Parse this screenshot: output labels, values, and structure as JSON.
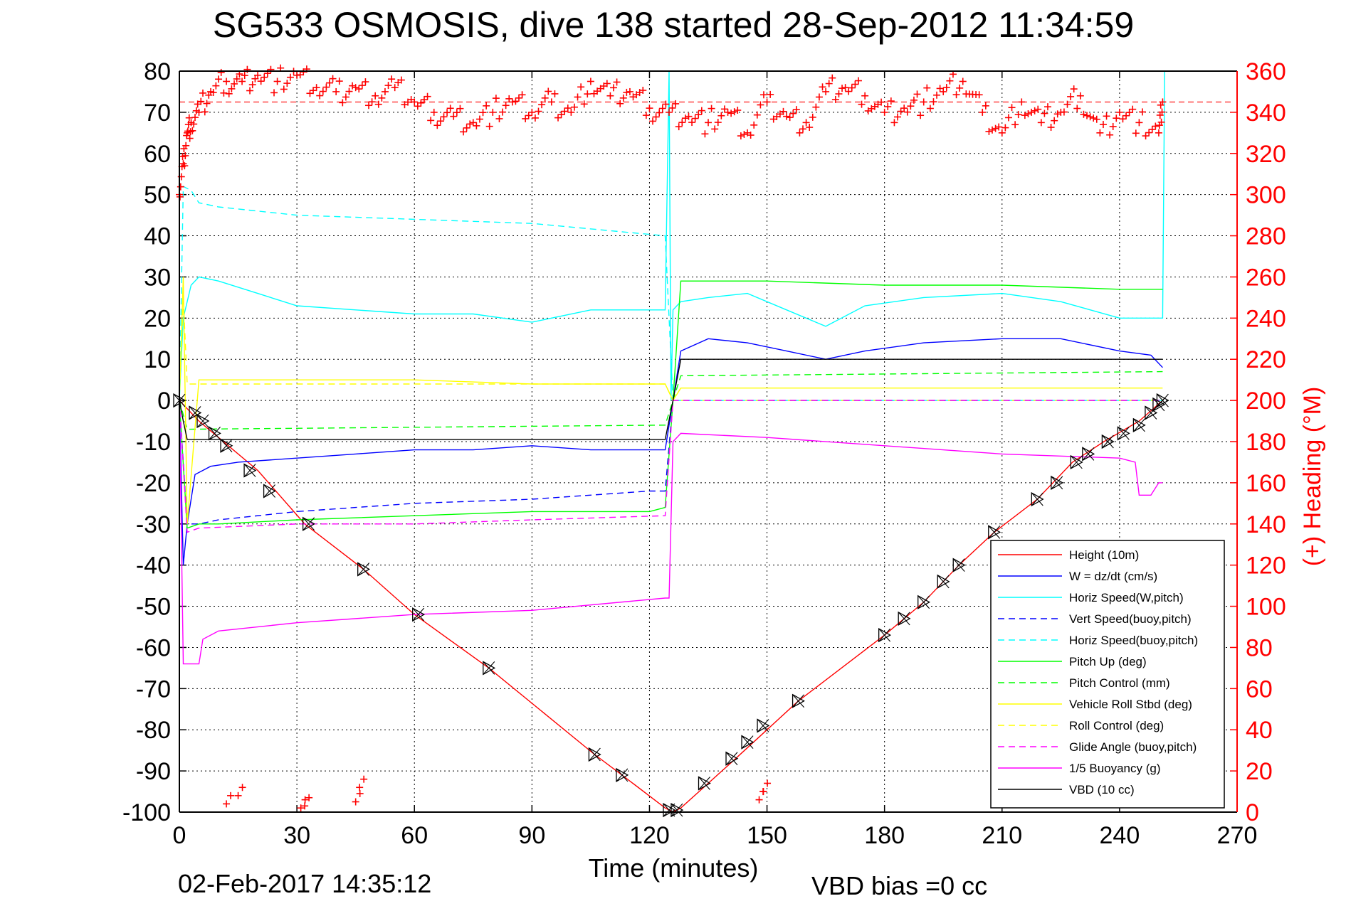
{
  "title": "SG533 OSMOSIS, dive 138 started 28-Sep-2012 11:34:59",
  "xlabel": "Time (minutes)",
  "ylabel_right": "(+) Heading (°M)",
  "footer": {
    "timestamp": "02-Feb-2017 14:35:12",
    "vbd_bias": "VBD bias =0 cc"
  },
  "colors": {
    "height": "#ff0000",
    "w": "#0000ff",
    "horiz_speed": "#00ffff",
    "pitch": "#00ff00",
    "roll": "#ffff00",
    "glide": "#ff00ff",
    "buoyancy": "#ff00ff",
    "vbd": "#000000",
    "heading": "#ff0000"
  },
  "chart_data": {
    "type": "line",
    "xlim": [
      0,
      270
    ],
    "ylim": [
      -100,
      80
    ],
    "ylim_right": [
      0,
      360
    ],
    "x_ticks": [
      "0",
      "30",
      "60",
      "90",
      "120",
      "150",
      "180",
      "210",
      "240",
      "270"
    ],
    "y_ticks": [
      "80",
      "70",
      "60",
      "50",
      "40",
      "30",
      "20",
      "10",
      "0",
      "-10",
      "-20",
      "-30",
      "-40",
      "-50",
      "-60",
      "-70",
      "-80",
      "-90",
      "-100"
    ],
    "y_ticks_right": [
      "360",
      "340",
      "320",
      "300",
      "280",
      "260",
      "240",
      "220",
      "200",
      "180",
      "160",
      "140",
      "120",
      "100",
      "80",
      "60",
      "40",
      "20",
      "0"
    ],
    "grid": true,
    "legend_position": "bottom-right",
    "series": [
      {
        "name": "Height (10m)",
        "style": "solid",
        "color": "#ff0000",
        "x": [
          0,
          5,
          10,
          20,
          32,
          47,
          60,
          79,
          106,
          113,
          124,
          126,
          128,
          135,
          142,
          150,
          158,
          180,
          190,
          199,
          208,
          219,
          228,
          236,
          245,
          251
        ],
        "y": [
          0,
          -5,
          -9,
          -17,
          -30,
          -41,
          -52,
          -65,
          -86,
          -91,
          -99,
          -100,
          -99,
          -93,
          -87,
          -80,
          -73,
          -57,
          -49,
          -40,
          -32,
          -24,
          -15,
          -10,
          -5,
          0
        ]
      },
      {
        "name": "W = dz/dt (cm/s)",
        "style": "solid",
        "color": "#0000ff",
        "x": [
          0,
          1,
          2,
          4,
          8,
          15,
          30,
          45,
          60,
          75,
          90,
          105,
          120,
          124,
          126,
          128,
          135,
          145,
          155,
          165,
          175,
          190,
          210,
          225,
          240,
          248,
          251
        ],
        "y": [
          0,
          -40,
          -30,
          -18,
          -16,
          -15,
          -14,
          -13,
          -12,
          -12,
          -11,
          -12,
          -12,
          -12,
          0,
          12,
          15,
          14,
          12,
          10,
          12,
          14,
          15,
          15,
          12,
          11,
          8
        ]
      },
      {
        "name": "Horiz Speed(W,pitch)",
        "style": "solid",
        "color": "#00ffff",
        "x": [
          0,
          1,
          3,
          5,
          10,
          20,
          30,
          45,
          60,
          75,
          90,
          105,
          120,
          124,
          125,
          125.5,
          126,
          128,
          135,
          145,
          155,
          165,
          175,
          190,
          210,
          225,
          240,
          248,
          251,
          251.5
        ],
        "y": [
          0,
          20,
          28,
          30,
          29,
          26,
          23,
          22,
          21,
          21,
          19,
          22,
          22,
          22,
          80,
          0,
          22,
          24,
          25,
          26,
          22,
          18,
          23,
          25,
          26,
          24,
          20,
          20,
          20,
          80
        ]
      },
      {
        "name": "Vert Speed(buoy,pitch)",
        "style": "dashed",
        "color": "#0000ff",
        "x": [
          0,
          2,
          5,
          10,
          30,
          60,
          90,
          120,
          124,
          126,
          128,
          251
        ],
        "y": [
          0,
          -30,
          -30,
          -29,
          -27,
          -25,
          -24,
          -22,
          -22,
          0,
          0,
          0
        ]
      },
      {
        "name": "Horiz Speed(buoy,pitch)",
        "style": "dashed",
        "color": "#00ffff",
        "x": [
          0,
          1,
          3,
          5,
          10,
          30,
          60,
          90,
          124,
          126,
          128,
          251
        ],
        "y": [
          0,
          52,
          51,
          48,
          47,
          45,
          44,
          43,
          40,
          0,
          0,
          0
        ]
      },
      {
        "name": "Pitch Up (deg)",
        "style": "solid",
        "color": "#00ff00",
        "x": [
          0,
          2,
          5,
          10,
          30,
          60,
          90,
          120,
          124,
          126,
          128,
          150,
          180,
          210,
          240,
          251
        ],
        "y": [
          0,
          -31,
          -30,
          -30,
          -29,
          -28,
          -27,
          -27,
          -26,
          0,
          29,
          29,
          28,
          28,
          27,
          27
        ]
      },
      {
        "name": "Pitch Control (mm)",
        "style": "dashed",
        "color": "#00ff00",
        "x": [
          0,
          2,
          124,
          126,
          128,
          251
        ],
        "y": [
          0,
          -7,
          -6,
          0,
          6,
          7
        ]
      },
      {
        "name": "Vehicle Roll Stbd (deg)",
        "style": "solid",
        "color": "#ffff00",
        "x": [
          0,
          1,
          2,
          5,
          10,
          30,
          60,
          90,
          120,
          124,
          126,
          128,
          150,
          180,
          210,
          240,
          251
        ],
        "y": [
          0,
          30,
          -30,
          5,
          5,
          5,
          5,
          4,
          4,
          4,
          0,
          3,
          3,
          3,
          3,
          3,
          3
        ]
      },
      {
        "name": "Roll Control (deg)",
        "style": "dashed",
        "color": "#ffff00",
        "x": [
          0,
          1,
          2,
          124,
          126,
          128,
          251
        ],
        "y": [
          0,
          25,
          4,
          4,
          0,
          0,
          0
        ]
      },
      {
        "name": "Glide Angle (buoy,pitch)",
        "style": "dashed",
        "color": "#ff00ff",
        "x": [
          0,
          2,
          5,
          30,
          60,
          90,
          124,
          126,
          128,
          251
        ],
        "y": [
          0,
          -32,
          -31,
          -30,
          -30,
          -29,
          -28,
          0,
          0,
          0
        ]
      },
      {
        "name": "1/5 Buoyancy (g)",
        "style": "solid",
        "color": "#ff00ff",
        "x": [
          0,
          1,
          2,
          5,
          6,
          10,
          30,
          60,
          90,
          124,
          125,
          126,
          128,
          150,
          180,
          210,
          240,
          244,
          245,
          248,
          250,
          251
        ],
        "y": [
          0,
          -64,
          -64,
          -64,
          -58,
          -56,
          -54,
          -52,
          -51,
          -48,
          -48,
          -10,
          -8,
          -9,
          -11,
          -13,
          -14,
          -15,
          -23,
          -23,
          -20,
          -20
        ]
      },
      {
        "name": "VBD (10 cc)",
        "style": "solid",
        "color": "#000000",
        "x": [
          0,
          1,
          2,
          124,
          126,
          128,
          251
        ],
        "y": [
          0,
          -5,
          -9.5,
          -9.5,
          0,
          10,
          10
        ]
      }
    ],
    "heading_series": {
      "name": "Heading",
      "axis": "right",
      "style": "markers",
      "marker": "+",
      "color": "#ff0000",
      "mean": 345,
      "x": [
        0,
        1,
        2,
        3,
        5,
        8,
        12,
        16,
        20,
        25,
        30,
        35,
        40,
        45,
        50,
        55,
        60,
        65,
        70,
        75,
        80,
        85,
        90,
        95,
        100,
        105,
        110,
        115,
        120,
        125,
        130,
        135,
        140,
        145,
        150,
        155,
        160,
        165,
        170,
        175,
        180,
        185,
        190,
        195,
        200,
        205,
        210,
        215,
        220,
        225,
        230,
        235,
        240,
        245,
        250,
        251
      ],
      "y": [
        300,
        315,
        330,
        335,
        340,
        350,
        355,
        355,
        358,
        355,
        358,
        352,
        350,
        352,
        348,
        352,
        345,
        340,
        338,
        335,
        340,
        345,
        340,
        345,
        340,
        355,
        348,
        350,
        342,
        340,
        338,
        335,
        340,
        330,
        345,
        338,
        335,
        350,
        352,
        348,
        340,
        342,
        345,
        350,
        355,
        340,
        330,
        345,
        335,
        340,
        348,
        330,
        340,
        335,
        330,
        345
      ]
    },
    "heading_low_x": [
      12,
      15,
      31,
      32,
      45,
      46,
      148,
      149
    ],
    "heading_low_y": [
      4,
      8,
      2,
      3,
      5,
      12,
      6,
      10
    ],
    "marker_points": {
      "style": "crossed-triangles",
      "color": "#000000",
      "x": [
        0,
        4,
        6,
        9,
        12,
        18,
        23,
        33,
        47,
        61,
        79,
        106,
        113,
        125,
        127,
        134,
        141,
        145,
        149,
        158,
        180,
        185,
        190,
        195,
        199,
        208,
        219,
        224,
        229,
        232,
        237,
        241,
        245,
        248,
        250,
        251
      ],
      "y": [
        0,
        -3,
        -5,
        -8,
        -11,
        -17,
        -22,
        -30,
        -41,
        -52,
        -65,
        -86,
        -91,
        -99.5,
        -99.5,
        -93,
        -87,
        -83,
        -79,
        -73,
        -57,
        -53,
        -49,
        -44,
        -40,
        -32,
        -24,
        -20,
        -15,
        -13,
        -10,
        -8,
        -6,
        -3,
        -1,
        0
      ]
    }
  }
}
